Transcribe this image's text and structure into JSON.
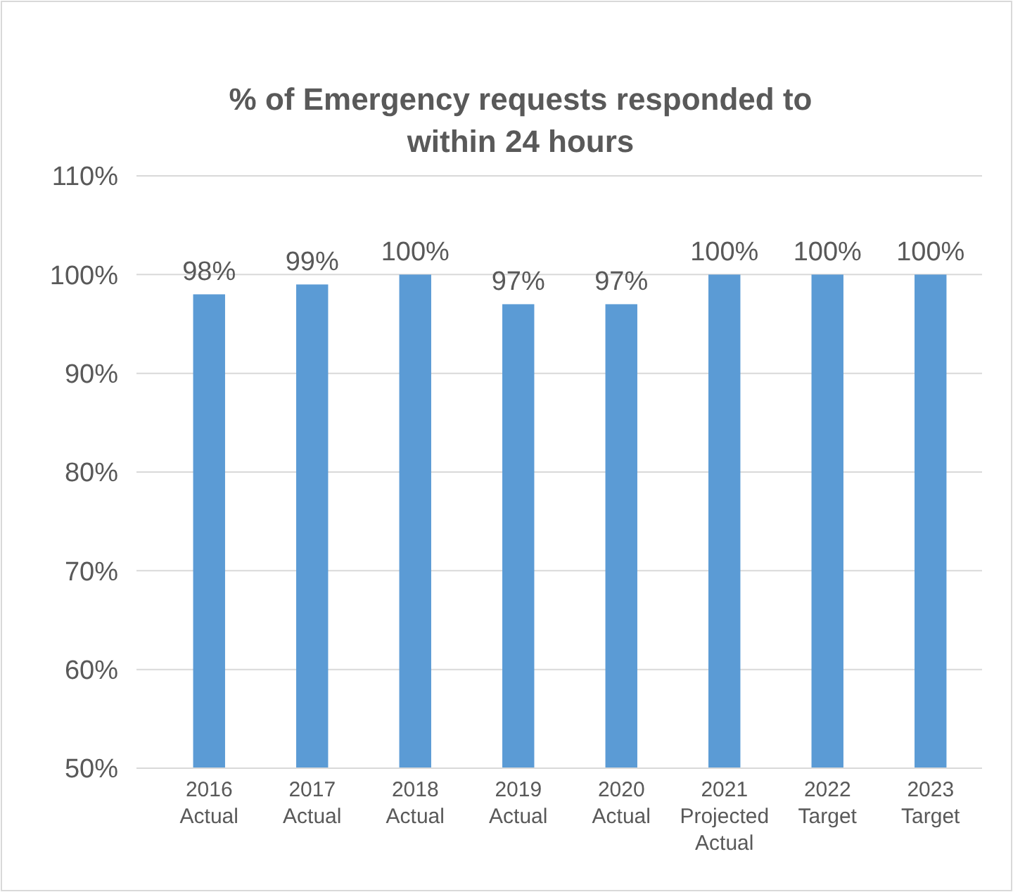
{
  "chart_data": {
    "type": "bar",
    "title": "% of Emergency requests responded to\nwithin 24 hours",
    "categories": [
      "2016\nActual",
      "2017\nActual",
      "2018\nActual",
      "2019\nActual",
      "2020\nActual",
      "2021\nProjected\nActual",
      "2022\nTarget",
      "2023\nTarget"
    ],
    "values": [
      98,
      99,
      100,
      97,
      97,
      100,
      100,
      100
    ],
    "value_labels": [
      "98%",
      "99%",
      "100%",
      "97%",
      "97%",
      "100%",
      "100%",
      "100%"
    ],
    "color": "#5b9bd5",
    "ylim": [
      50,
      110
    ],
    "yticks": [
      {
        "value": 50,
        "label": "50%"
      },
      {
        "value": 60,
        "label": "60%"
      },
      {
        "value": 70,
        "label": "70%"
      },
      {
        "value": 80,
        "label": "80%"
      },
      {
        "value": 90,
        "label": "90%"
      },
      {
        "value": 100,
        "label": "100%"
      },
      {
        "value": 110,
        "label": "110%"
      }
    ],
    "grid": "y"
  }
}
